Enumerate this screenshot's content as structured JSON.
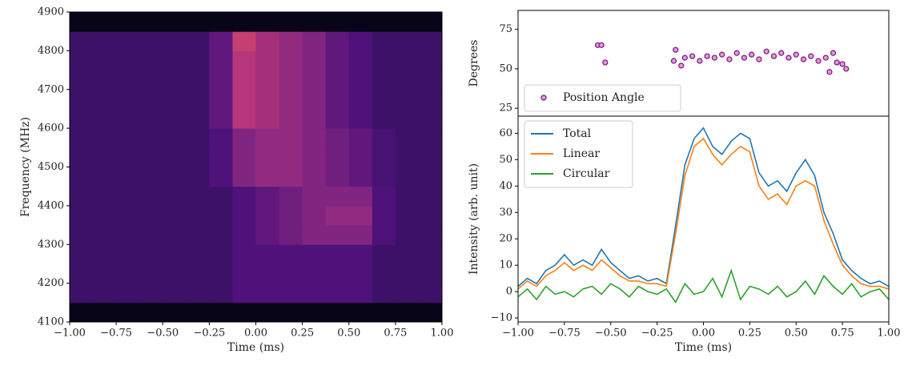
{
  "chart_data": [
    {
      "type": "heatmap",
      "xlabel": "Time (ms)",
      "ylabel": "Frequency (MHz)",
      "colormap": "magma",
      "xlim": [
        -1,
        1
      ],
      "ylim": [
        4100,
        4900
      ],
      "xticks": [
        {
          "value": -1,
          "label": "−1.00"
        },
        {
          "value": -0.75,
          "label": "−0.75"
        },
        {
          "value": -0.5,
          "label": "−0.50"
        },
        {
          "value": -0.25,
          "label": "−0.25"
        },
        {
          "value": 0,
          "label": "0.00"
        },
        {
          "value": 0.25,
          "label": "0.25"
        },
        {
          "value": 0.5,
          "label": "0.50"
        },
        {
          "value": 0.75,
          "label": "0.75"
        },
        {
          "value": 1,
          "label": "1.00"
        }
      ],
      "yticks": [
        4100,
        4200,
        4300,
        4400,
        4500,
        4600,
        4700,
        4800,
        4900
      ],
      "xbins": [
        -1,
        -0.875,
        -0.75,
        -0.625,
        -0.5,
        -0.375,
        -0.25,
        -0.125,
        0,
        0.125,
        0.25,
        0.375,
        0.5,
        0.625,
        0.75,
        0.875,
        1
      ],
      "ybins": [
        4100,
        4150,
        4200,
        4250,
        4300,
        4350,
        4400,
        4450,
        4500,
        4550,
        4600,
        4650,
        4700,
        4750,
        4800,
        4850,
        4900
      ],
      "values": [
        [
          0.05,
          0.05,
          0.05,
          0.05,
          0.05,
          0.05,
          0.05,
          0.05,
          0.05,
          0.05,
          0.05,
          0.05,
          0.05,
          0.05,
          0.05,
          0.05
        ],
        [
          0.25,
          0.25,
          0.25,
          0.25,
          0.25,
          0.25,
          0.25,
          0.3,
          0.3,
          0.3,
          0.3,
          0.3,
          0.3,
          0.25,
          0.25,
          0.25
        ],
        [
          0.25,
          0.25,
          0.25,
          0.25,
          0.25,
          0.25,
          0.25,
          0.3,
          0.3,
          0.3,
          0.3,
          0.3,
          0.3,
          0.25,
          0.25,
          0.25
        ],
        [
          0.25,
          0.25,
          0.25,
          0.25,
          0.25,
          0.25,
          0.25,
          0.3,
          0.3,
          0.3,
          0.3,
          0.3,
          0.3,
          0.25,
          0.25,
          0.25
        ],
        [
          0.25,
          0.25,
          0.25,
          0.25,
          0.25,
          0.25,
          0.25,
          0.3,
          0.35,
          0.4,
          0.45,
          0.45,
          0.45,
          0.3,
          0.25,
          0.25
        ],
        [
          0.25,
          0.25,
          0.25,
          0.25,
          0.25,
          0.25,
          0.25,
          0.3,
          0.35,
          0.4,
          0.45,
          0.5,
          0.5,
          0.3,
          0.25,
          0.25
        ],
        [
          0.25,
          0.25,
          0.25,
          0.25,
          0.25,
          0.25,
          0.25,
          0.3,
          0.35,
          0.4,
          0.45,
          0.45,
          0.45,
          0.3,
          0.25,
          0.25
        ],
        [
          0.25,
          0.25,
          0.25,
          0.25,
          0.25,
          0.25,
          0.3,
          0.45,
          0.5,
          0.5,
          0.45,
          0.4,
          0.35,
          0.28,
          0.25,
          0.25
        ],
        [
          0.25,
          0.25,
          0.25,
          0.25,
          0.25,
          0.25,
          0.3,
          0.45,
          0.5,
          0.5,
          0.45,
          0.4,
          0.35,
          0.28,
          0.25,
          0.25
        ],
        [
          0.25,
          0.25,
          0.25,
          0.25,
          0.25,
          0.25,
          0.3,
          0.45,
          0.5,
          0.5,
          0.45,
          0.4,
          0.35,
          0.28,
          0.25,
          0.25
        ],
        [
          0.25,
          0.25,
          0.25,
          0.25,
          0.25,
          0.25,
          0.35,
          0.6,
          0.55,
          0.5,
          0.45,
          0.35,
          0.3,
          0.25,
          0.25,
          0.25
        ],
        [
          0.25,
          0.25,
          0.25,
          0.25,
          0.25,
          0.25,
          0.35,
          0.6,
          0.55,
          0.5,
          0.45,
          0.35,
          0.3,
          0.25,
          0.25,
          0.25
        ],
        [
          0.25,
          0.25,
          0.25,
          0.25,
          0.25,
          0.25,
          0.35,
          0.6,
          0.55,
          0.5,
          0.45,
          0.35,
          0.3,
          0.25,
          0.25,
          0.25
        ],
        [
          0.25,
          0.25,
          0.25,
          0.25,
          0.25,
          0.25,
          0.35,
          0.6,
          0.55,
          0.5,
          0.45,
          0.35,
          0.3,
          0.25,
          0.25,
          0.25
        ],
        [
          0.25,
          0.25,
          0.25,
          0.25,
          0.25,
          0.25,
          0.35,
          0.65,
          0.55,
          0.5,
          0.45,
          0.35,
          0.3,
          0.25,
          0.25,
          0.25
        ],
        [
          0.05,
          0.05,
          0.05,
          0.05,
          0.05,
          0.05,
          0.05,
          0.05,
          0.05,
          0.05,
          0.05,
          0.05,
          0.05,
          0.05,
          0.05,
          0.05
        ]
      ]
    },
    {
      "type": "scatter",
      "ylabel": "Degrees",
      "xlim": [
        -1,
        1
      ],
      "ylim": [
        20,
        87
      ],
      "yticks": [
        25,
        50,
        75
      ],
      "legend": "lower left",
      "series": [
        {
          "name": "Position Angle",
          "color": "#8b1a8b",
          "x": [
            -0.57,
            -0.55,
            -0.53,
            -0.16,
            -0.15,
            -0.12,
            -0.1,
            -0.06,
            -0.02,
            0.02,
            0.06,
            0.1,
            0.14,
            0.18,
            0.22,
            0.26,
            0.3,
            0.34,
            0.38,
            0.42,
            0.46,
            0.5,
            0.54,
            0.58,
            0.62,
            0.66,
            0.68,
            0.7,
            0.72,
            0.75,
            0.77
          ],
          "values": [
            65,
            65,
            54,
            55,
            62,
            52,
            57,
            58,
            55,
            58,
            57,
            59,
            56,
            60,
            57,
            59,
            56,
            61,
            58,
            60,
            57,
            59,
            56,
            58,
            55,
            57,
            48,
            60,
            54,
            53,
            50
          ]
        }
      ]
    },
    {
      "type": "line",
      "xlabel": "Time (ms)",
      "ylabel": "Intensity (arb. unit)",
      "xlim": [
        -1,
        1
      ],
      "ylim": [
        -11.5,
        66.5
      ],
      "legend": "upper left",
      "xticks": [
        {
          "value": -1,
          "label": "−1.00"
        },
        {
          "value": -0.75,
          "label": "−0.75"
        },
        {
          "value": -0.5,
          "label": "−0.50"
        },
        {
          "value": -0.25,
          "label": "−0.25"
        },
        {
          "value": 0,
          "label": "0.00"
        },
        {
          "value": 0.25,
          "label": "0.25"
        },
        {
          "value": 0.5,
          "label": "0.50"
        },
        {
          "value": 0.75,
          "label": "0.75"
        },
        {
          "value": 1,
          "label": "1.00"
        }
      ],
      "yticks": [
        {
          "value": -10,
          "label": "−10"
        },
        0,
        10,
        20,
        30,
        40,
        50,
        60
      ],
      "x": [
        -1,
        -0.95,
        -0.9,
        -0.85,
        -0.8,
        -0.75,
        -0.7,
        -0.65,
        -0.6,
        -0.55,
        -0.5,
        -0.45,
        -0.4,
        -0.35,
        -0.3,
        -0.25,
        -0.2,
        -0.15,
        -0.1,
        -0.05,
        0,
        0.05,
        0.1,
        0.15,
        0.2,
        0.25,
        0.3,
        0.35,
        0.4,
        0.45,
        0.5,
        0.55,
        0.6,
        0.65,
        0.7,
        0.75,
        0.8,
        0.85,
        0.9,
        0.95,
        1
      ],
      "series": [
        {
          "name": "Total",
          "color": "#1f77b4",
          "values": [
            2,
            5,
            3,
            8,
            10,
            14,
            10,
            12,
            10,
            16,
            11,
            8,
            5,
            6,
            4,
            5,
            3,
            25,
            48,
            58,
            62,
            55,
            52,
            57,
            60,
            58,
            45,
            40,
            42,
            38,
            45,
            50,
            44,
            30,
            22,
            12,
            8,
            5,
            3,
            4,
            2
          ]
        },
        {
          "name": "Linear",
          "color": "#ff7f0e",
          "values": [
            1,
            4,
            2,
            6,
            8,
            11,
            8,
            10,
            8,
            12,
            9,
            6,
            4,
            4,
            3,
            3,
            2,
            22,
            44,
            55,
            58,
            52,
            48,
            52,
            55,
            53,
            40,
            35,
            37,
            33,
            40,
            42,
            40,
            27,
            18,
            10,
            6,
            3,
            2,
            2,
            1
          ]
        },
        {
          "name": "Circular",
          "color": "#2ca02c",
          "values": [
            -2,
            1,
            -3,
            2,
            -1,
            0,
            -2,
            1,
            2,
            -1,
            3,
            1,
            -2,
            2,
            0,
            -1,
            1,
            -4,
            3,
            -1,
            0,
            5,
            -2,
            8,
            -3,
            2,
            1,
            -1,
            2,
            -2,
            0,
            4,
            -1,
            6,
            2,
            -1,
            3,
            -2,
            0,
            1,
            -3
          ]
        }
      ]
    }
  ]
}
